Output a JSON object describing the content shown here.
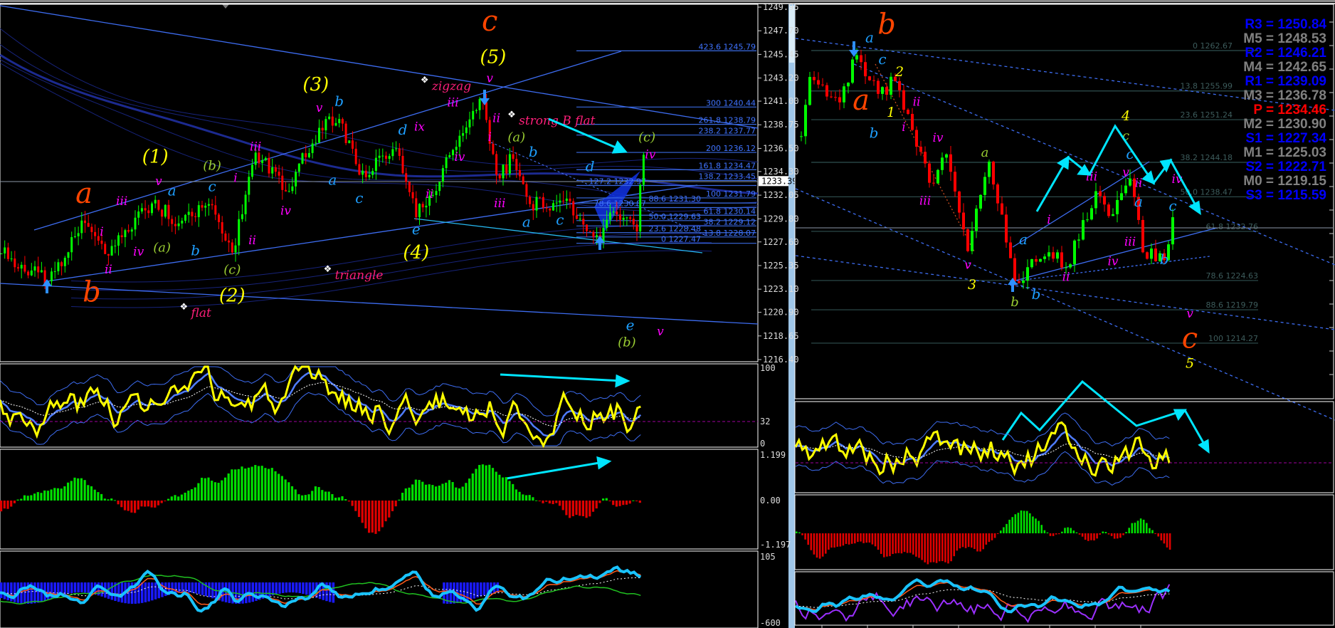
{
  "colors": {
    "background": "#000000",
    "bull_candle": "#00ff00",
    "bear_candle": "#ff0000",
    "primary_wave": "#ff4500",
    "intermediate_wave": "#ffff00",
    "minor_wave": "#9acd32",
    "minute_wave": "#1e9fff",
    "minuette_wave": "#ff00ff",
    "annotation": "#ff1f7a",
    "arrow": "#00e5ff",
    "resistance": "#0000ff",
    "midpoint": "#808080",
    "pivot": "#ff0000"
  },
  "left_chart": {
    "price_axis": [
      "1249.95",
      "1247.70",
      "1245.45",
      "1243.20",
      "1241.00",
      "1238.75",
      "1236.50",
      "1234.30",
      "1232.05",
      "1229.80",
      "1227.60",
      "1225.35",
      "1223.10",
      "1220.90",
      "1218.65",
      "1216.40"
    ],
    "current_price": "1233.39",
    "indicator1_axis": [
      "100",
      "32",
      "0"
    ],
    "indicator2_axis": [
      "1.199",
      "0.00",
      "-1.197"
    ],
    "indicator3_axis": [
      "105",
      "-600"
    ],
    "fib_levels": [
      {
        "ratio": "423.6",
        "price": "1245.79"
      },
      {
        "ratio": "300",
        "price": "1240.44"
      },
      {
        "ratio": "261.8",
        "price": "1238.79"
      },
      {
        "ratio": "238.2",
        "price": "1237.77"
      },
      {
        "ratio": "200",
        "price": "1236.12"
      },
      {
        "ratio": "161.8",
        "price": "1234.47"
      },
      {
        "ratio": "138.2",
        "price": "1233.45"
      },
      {
        "ratio": "127.2",
        "price": "1232.97"
      },
      {
        "ratio": "100",
        "price": "1231.79"
      },
      {
        "ratio": "88.6",
        "price": "1231.30"
      },
      {
        "ratio": "78.6",
        "price": "1230.87"
      },
      {
        "ratio": "61.8",
        "price": "1230.14"
      },
      {
        "ratio": "50.0",
        "price": "1229.63"
      },
      {
        "ratio": "38.2",
        "price": "1229.12"
      },
      {
        "ratio": "23.6",
        "price": "1228.48"
      },
      {
        "ratio": "13.8",
        "price": "1228.07"
      },
      {
        "ratio": "0",
        "price": "1227.47"
      }
    ],
    "swings": [
      [
        0,
        1226.5
      ],
      [
        14,
        1223.85
      ],
      [
        25,
        1229.4
      ],
      [
        32,
        1226.3
      ],
      [
        46,
        1231.6
      ],
      [
        52,
        1229.1
      ],
      [
        62,
        1231.2
      ],
      [
        69,
        1226.6
      ],
      [
        76,
        1236.1
      ],
      [
        85,
        1232.4
      ],
      [
        97,
        1239.3
      ],
      [
        101,
        1239.3
      ],
      [
        107,
        1234.0
      ],
      [
        118,
        1236.5
      ],
      [
        124,
        1229.95
      ],
      [
        128,
        1232.0
      ],
      [
        139,
        1238.5
      ],
      [
        144,
        1240.9
      ],
      [
        148,
        1234.0
      ],
      [
        153,
        1235.5
      ],
      [
        158,
        1231.2
      ],
      [
        168,
        1231.5
      ],
      [
        179,
        1227.5
      ],
      [
        183,
        1230.5
      ],
      [
        190,
        1228.6
      ],
      [
        192,
        1235.9
      ]
    ],
    "annotations": [
      {
        "text": "flat",
        "bar": 55,
        "price": 1221.0
      },
      {
        "text": "triangle",
        "bar": 98,
        "price": 1224.6
      },
      {
        "text": "zigzag",
        "bar": 127,
        "price": 1239.6
      },
      {
        "text": "strong B flat",
        "bar": 153,
        "price": 1239.3
      }
    ],
    "wave_labels": [
      {
        "text": "a",
        "degree": "primary",
        "bar": 24.7,
        "price": 1232.0
      },
      {
        "text": "b",
        "degree": "primary",
        "bar": 27,
        "price": 1222.6
      },
      {
        "text": "c",
        "degree": "primary",
        "bar": 146,
        "price": 1248.4
      },
      {
        "text": "(1)",
        "degree": "intermediate",
        "bar": 46,
        "price": 1235.6
      },
      {
        "text": "(2)",
        "degree": "intermediate",
        "bar": 69,
        "price": 1222.4
      },
      {
        "text": "(3)",
        "degree": "intermediate",
        "bar": 94,
        "price": 1242.5
      },
      {
        "text": "(4)",
        "degree": "intermediate",
        "bar": 124,
        "price": 1226.5
      },
      {
        "text": "(5)",
        "degree": "intermediate",
        "bar": 147,
        "price": 1245.1
      },
      {
        "text": "(b)",
        "degree": "minor",
        "bar": 63,
        "price": 1234.8
      },
      {
        "text": "(a)",
        "degree": "minor",
        "bar": 48,
        "price": 1227.0
      },
      {
        "text": "(c)",
        "degree": "minor",
        "bar": 69,
        "price": 1224.9
      },
      {
        "text": "(a)",
        "degree": "minor",
        "bar": 154,
        "price": 1237.5
      },
      {
        "text": "(c)",
        "degree": "minor",
        "bar": 193,
        "price": 1237.5
      },
      {
        "text": "(b)",
        "degree": "minor",
        "bar": 187,
        "price": 1218.0
      },
      {
        "text": "a",
        "degree": "minute",
        "bar": 51,
        "price": 1232.4
      },
      {
        "text": "c",
        "degree": "minute",
        "bar": 63,
        "price": 1232.8
      },
      {
        "text": "b",
        "degree": "minute",
        "bar": 58,
        "price": 1226.7
      },
      {
        "text": "b",
        "degree": "minute",
        "bar": 101,
        "price": 1240.9
      },
      {
        "text": "a",
        "degree": "minute",
        "bar": 99,
        "price": 1233.4
      },
      {
        "text": "c",
        "degree": "minute",
        "bar": 107,
        "price": 1231.7
      },
      {
        "text": "d",
        "degree": "minute",
        "bar": 120,
        "price": 1238.2
      },
      {
        "text": "e",
        "degree": "minute",
        "bar": 124,
        "price": 1228.7
      },
      {
        "text": "b",
        "degree": "minute",
        "bar": 159,
        "price": 1236.1
      },
      {
        "text": "a",
        "degree": "minute",
        "bar": 157,
        "price": 1229.4
      },
      {
        "text": "c",
        "degree": "minute",
        "bar": 167,
        "price": 1229.6
      },
      {
        "text": "d",
        "degree": "minute",
        "bar": 176,
        "price": 1233.6
      },
      {
        "text": "e",
        "degree": "minute",
        "bar": 188,
        "price": 1219.6
      },
      {
        "text": "i",
        "degree": "minuette",
        "bar": 30,
        "price": 1228.5
      },
      {
        "text": "ii",
        "degree": "minuette",
        "bar": 32,
        "price": 1224.9
      },
      {
        "text": "iii",
        "degree": "minuette",
        "bar": 36,
        "price": 1231.4
      },
      {
        "text": "iv",
        "degree": "minuette",
        "bar": 41,
        "price": 1226.6
      },
      {
        "text": "v",
        "degree": "minuette",
        "bar": 47,
        "price": 1233.3
      },
      {
        "text": "i",
        "degree": "minuette",
        "bar": 70,
        "price": 1233.6
      },
      {
        "text": "ii",
        "degree": "minuette",
        "bar": 75,
        "price": 1227.7
      },
      {
        "text": "iii",
        "degree": "minuette",
        "bar": 76,
        "price": 1236.6
      },
      {
        "text": "iv",
        "degree": "minuette",
        "bar": 85,
        "price": 1230.5
      },
      {
        "text": "v",
        "degree": "minuette",
        "bar": 95,
        "price": 1240.3
      },
      {
        "text": "ix",
        "degree": "minuette",
        "bar": 125,
        "price": 1238.5
      },
      {
        "text": "ii",
        "degree": "minuette",
        "bar": 128,
        "price": 1232.1
      },
      {
        "text": "iii",
        "degree": "minuette",
        "bar": 135,
        "price": 1240.8
      },
      {
        "text": "iv",
        "degree": "minuette",
        "bar": 137,
        "price": 1235.6
      },
      {
        "text": "v",
        "degree": "minuette",
        "bar": 146,
        "price": 1243.1
      },
      {
        "text": "ii",
        "degree": "minuette",
        "bar": 148,
        "price": 1239.3
      },
      {
        "text": "i",
        "degree": "minuette",
        "bar": 146,
        "price": 1237.5
      },
      {
        "text": "iii",
        "degree": "minuette",
        "bar": 149,
        "price": 1231.2
      },
      {
        "text": "iv",
        "degree": "minuette",
        "bar": 194,
        "price": 1235.85
      },
      {
        "text": "v",
        "degree": "minuette",
        "bar": 197,
        "price": 1219.0
      }
    ]
  },
  "right_chart": {
    "pivots": [
      {
        "name": "R3",
        "value": "1250.84",
        "type": "resistance"
      },
      {
        "name": "M5",
        "value": "1248.53",
        "type": "midpoint"
      },
      {
        "name": "R2",
        "value": "1246.21",
        "type": "resistance"
      },
      {
        "name": "M4",
        "value": "1242.65",
        "type": "midpoint"
      },
      {
        "name": "R1",
        "value": "1239.09",
        "type": "resistance"
      },
      {
        "name": "M3",
        "value": "1236.78",
        "type": "midpoint"
      },
      {
        "name": "P ",
        "value": "1234.46",
        "type": "pivot"
      },
      {
        "name": "M2",
        "value": "1230.90",
        "type": "midpoint"
      },
      {
        "name": "S1",
        "value": "1227.34",
        "type": "resistance"
      },
      {
        "name": "M1",
        "value": "1225.03",
        "type": "midpoint"
      },
      {
        "name": "S2",
        "value": "1222.71",
        "type": "resistance"
      },
      {
        "name": "M0",
        "value": "1219.15",
        "type": "midpoint"
      },
      {
        "name": "S3",
        "value": "1215.59",
        "type": "resistance"
      }
    ],
    "fib_levels": [
      {
        "ratio": "0",
        "price": "1262.67"
      },
      {
        "ratio": "13.8",
        "price": "1255.99"
      },
      {
        "ratio": "23.6",
        "price": "1251.24"
      },
      {
        "ratio": "38.2",
        "price": "1244.18"
      },
      {
        "ratio": "50.0",
        "price": "1238.47"
      },
      {
        "ratio": "61.8",
        "price": "1232.76"
      },
      {
        "ratio": "78.6",
        "price": "1224.63"
      },
      {
        "ratio": "88.6",
        "price": "1219.79"
      },
      {
        "ratio": "100",
        "price": "1214.27"
      }
    ],
    "swings": [
      [
        1,
        1248.5
      ],
      [
        3,
        1258.3
      ],
      [
        10,
        1254.1
      ],
      [
        14,
        1261.9
      ],
      [
        19,
        1255.5
      ],
      [
        23,
        1257.6
      ],
      [
        31,
        1240.8
      ],
      [
        35,
        1245.5
      ],
      [
        40,
        1229.5
      ],
      [
        45,
        1244.3
      ],
      [
        51,
        1224.5
      ],
      [
        59,
        1229.3
      ],
      [
        63,
        1226.8
      ],
      [
        70,
        1239.4
      ],
      [
        73,
        1235.3
      ],
      [
        78,
        1241.5
      ],
      [
        81,
        1229.3
      ],
      [
        86,
        1228.0
      ],
      [
        88,
        1235.1
      ]
    ],
    "wave_labels": [
      {
        "text": "b",
        "degree": "primary",
        "bar": 21,
        "price": 1266.6
      },
      {
        "text": "a",
        "degree": "primary",
        "bar": 15,
        "price": 1254.1
      },
      {
        "text": "c",
        "degree": "primary",
        "bar": 92,
        "price": 1214.7
      },
      {
        "text": "a",
        "degree": "minute",
        "bar": 17,
        "price": 1264.7
      },
      {
        "text": "c",
        "degree": "minute",
        "bar": 20,
        "price": 1261.1
      },
      {
        "text": "b",
        "degree": "minute",
        "bar": 18,
        "price": 1248.9
      },
      {
        "text": "1",
        "degree": "numeric",
        "bar": 22,
        "price": 1252.3
      },
      {
        "text": "2",
        "degree": "numeric",
        "bar": 24,
        "price": 1259.0
      },
      {
        "text": "3",
        "degree": "numeric",
        "bar": 41,
        "price": 1223.8
      },
      {
        "text": "4",
        "degree": "numeric",
        "bar": 77,
        "price": 1251.7
      },
      {
        "text": "5",
        "degree": "numeric",
        "bar": 92,
        "price": 1210.8
      },
      {
        "text": "a",
        "degree": "minor",
        "bar": 44,
        "price": 1245.7
      },
      {
        "text": "b",
        "degree": "minor",
        "bar": 51,
        "price": 1221.0
      },
      {
        "text": "c",
        "degree": "minor",
        "bar": 77,
        "price": 1248.5
      },
      {
        "text": "a",
        "degree": "minute",
        "bar": 53,
        "price": 1231.3
      },
      {
        "text": "b",
        "degree": "minute",
        "bar": 56,
        "price": 1222.2
      },
      {
        "text": "c",
        "degree": "minute",
        "bar": 78,
        "price": 1245.9
      },
      {
        "text": "a",
        "degree": "minute",
        "bar": 80,
        "price": 1237.5
      },
      {
        "text": "c",
        "degree": "minute",
        "bar": 88,
        "price": 1236.8
      },
      {
        "text": "b",
        "degree": "minute",
        "bar": 86,
        "price": 1228.0
      },
      {
        "text": "ii",
        "degree": "minuette",
        "bar": 28,
        "price": 1254.1
      },
      {
        "text": "i",
        "degree": "minuette",
        "bar": 25,
        "price": 1249.9
      },
      {
        "text": "iv",
        "degree": "minuette",
        "bar": 33,
        "price": 1248.1
      },
      {
        "text": "iii",
        "degree": "minuette",
        "bar": 30,
        "price": 1237.7
      },
      {
        "text": "v",
        "degree": "minuette",
        "bar": 40,
        "price": 1227.1
      },
      {
        "text": "i",
        "degree": "minuette",
        "bar": 59,
        "price": 1234.6
      },
      {
        "text": "ii",
        "degree": "minuette",
        "bar": 63,
        "price": 1225.1
      },
      {
        "text": "iii",
        "degree": "minuette",
        "bar": 69,
        "price": 1241.7
      },
      {
        "text": "v",
        "degree": "minuette",
        "bar": 77,
        "price": 1243.8
      },
      {
        "text": "ii",
        "degree": "minuette",
        "bar": 80,
        "price": 1239.7
      },
      {
        "text": "iii",
        "degree": "minuette",
        "bar": 78,
        "price": 1230.9
      },
      {
        "text": "iv",
        "degree": "minuette",
        "bar": 74,
        "price": 1227.7
      },
      {
        "text": "iv",
        "degree": "minuette",
        "bar": 89,
        "price": 1239.4
      },
      {
        "text": "v",
        "degree": "minuette",
        "bar": 92,
        "price": 1217.6
      }
    ]
  }
}
